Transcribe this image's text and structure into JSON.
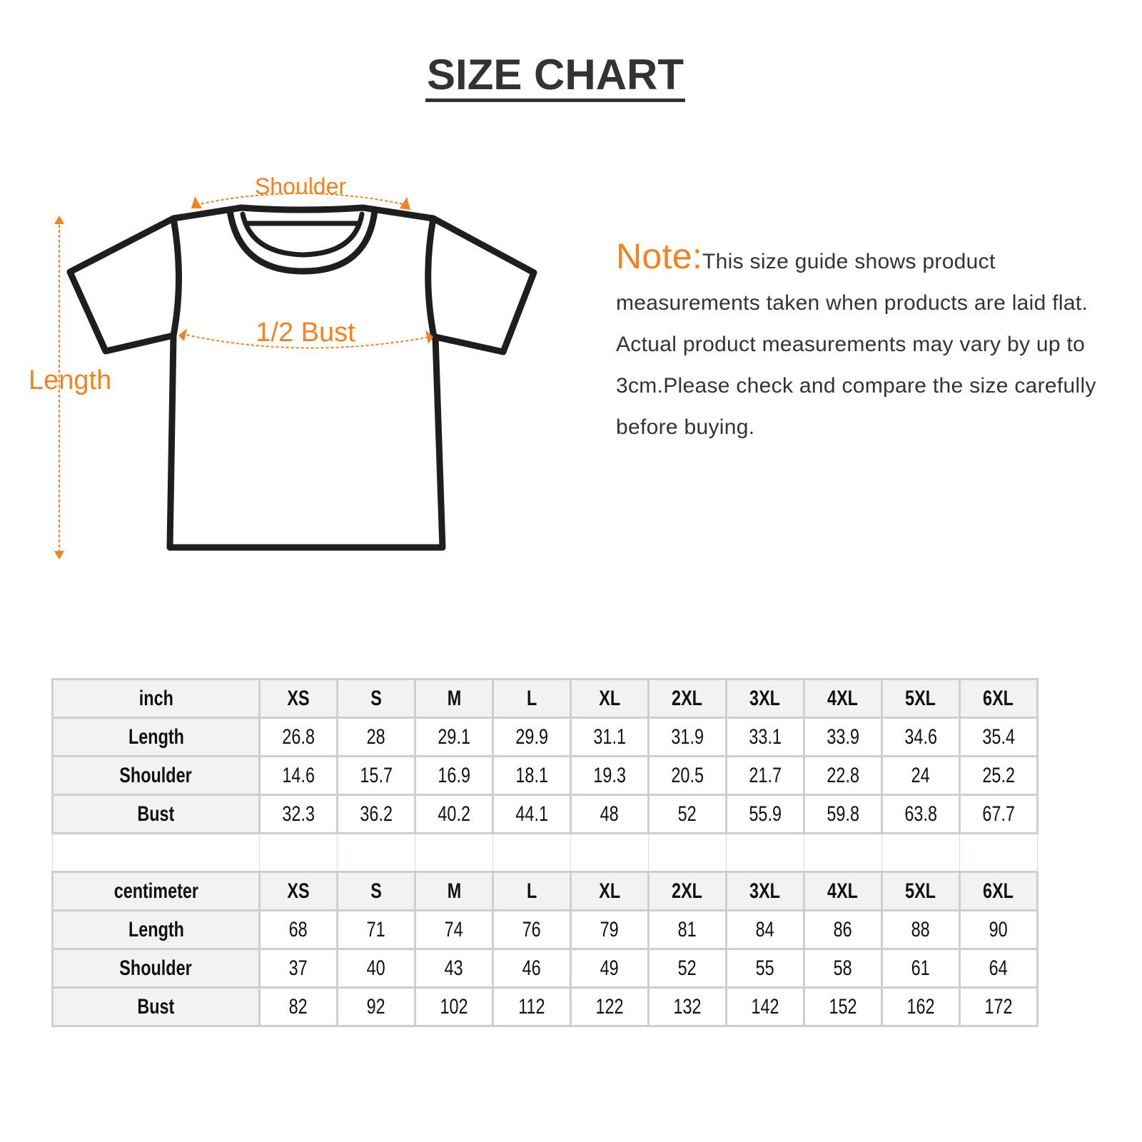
{
  "title": "SIZE CHART",
  "diagram": {
    "labels": {
      "shoulder": "Shoulder",
      "bust": "1/2 Bust",
      "length": "Length"
    },
    "accent_color": "#f5821f",
    "outline_color": "#1e1e1e"
  },
  "note": {
    "lead": "Note:",
    "text": "This size guide shows product measurements taken when products are laid flat. Actual product measurements may vary by up to 3cm.Please check and compare the size carefully before buying."
  },
  "tables": {
    "inch": {
      "unit": "inch",
      "sizes": [
        "XS",
        "S",
        "M",
        "L",
        "XL",
        "2XL",
        "3XL",
        "4XL",
        "5XL",
        "6XL"
      ],
      "rows": [
        {
          "label": "Length",
          "values": [
            "26.8",
            "28",
            "29.1",
            "29.9",
            "31.1",
            "31.9",
            "33.1",
            "33.9",
            "34.6",
            "35.4"
          ]
        },
        {
          "label": "Shoulder",
          "values": [
            "14.6",
            "15.7",
            "16.9",
            "18.1",
            "19.3",
            "20.5",
            "21.7",
            "22.8",
            "24",
            "25.2"
          ]
        },
        {
          "label": "Bust",
          "values": [
            "32.3",
            "36.2",
            "40.2",
            "44.1",
            "48",
            "52",
            "55.9",
            "59.8",
            "63.8",
            "67.7"
          ]
        }
      ]
    },
    "cm": {
      "unit": "centimeter",
      "sizes": [
        "XS",
        "S",
        "M",
        "L",
        "XL",
        "2XL",
        "3XL",
        "4XL",
        "5XL",
        "6XL"
      ],
      "rows": [
        {
          "label": "Length",
          "values": [
            "68",
            "71",
            "74",
            "76",
            "79",
            "81",
            "84",
            "86",
            "88",
            "90"
          ]
        },
        {
          "label": "Shoulder",
          "values": [
            "37",
            "40",
            "43",
            "46",
            "49",
            "52",
            "55",
            "58",
            "61",
            "64"
          ]
        },
        {
          "label": "Bust",
          "values": [
            "82",
            "92",
            "102",
            "112",
            "122",
            "132",
            "142",
            "152",
            "162",
            "172"
          ]
        }
      ]
    }
  }
}
